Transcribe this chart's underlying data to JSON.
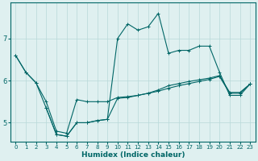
{
  "title": "",
  "xlabel": "Humidex (Indice chaleur)",
  "background_color": "#dff0f0",
  "grid_color": "#b8d8d8",
  "line_color": "#006666",
  "xlim": [
    -0.5,
    23.5
  ],
  "ylim": [
    4.55,
    7.85
  ],
  "yticks": [
    5,
    6,
    7
  ],
  "xticks": [
    0,
    1,
    2,
    3,
    4,
    5,
    6,
    7,
    8,
    9,
    10,
    11,
    12,
    13,
    14,
    15,
    16,
    17,
    18,
    19,
    20,
    21,
    22,
    23
  ],
  "line1_x": [
    0,
    1,
    2,
    3,
    4,
    5,
    6,
    7,
    8,
    9,
    10,
    11,
    12,
    13,
    14,
    15,
    16,
    17,
    18,
    19,
    20,
    21,
    22,
    23
  ],
  "line1_y": [
    6.6,
    6.2,
    5.95,
    5.5,
    4.8,
    4.75,
    5.55,
    5.5,
    5.5,
    5.5,
    5.6,
    5.62,
    5.65,
    5.7,
    5.75,
    5.82,
    5.88,
    5.93,
    5.98,
    6.03,
    6.1,
    5.7,
    5.7,
    5.92
  ],
  "line2_x": [
    0,
    1,
    2,
    3,
    4,
    5,
    6,
    7,
    8,
    9,
    10,
    11,
    12,
    13,
    14,
    15,
    16,
    17,
    18,
    19,
    20,
    21,
    22,
    23
  ],
  "line2_y": [
    6.6,
    6.2,
    5.95,
    5.35,
    4.72,
    4.68,
    5.0,
    5.0,
    5.05,
    5.08,
    7.0,
    7.35,
    7.2,
    7.28,
    7.6,
    6.65,
    6.72,
    6.72,
    6.82,
    6.82,
    6.2,
    5.65,
    5.65,
    5.92
  ],
  "line3_x": [
    3,
    4,
    5,
    6,
    7,
    8,
    9,
    10,
    11,
    12,
    13,
    14,
    15,
    16,
    17,
    18,
    19,
    20,
    21,
    22,
    23
  ],
  "line3_y": [
    5.35,
    4.72,
    4.68,
    5.0,
    5.0,
    5.05,
    5.08,
    5.58,
    5.6,
    5.65,
    5.7,
    5.78,
    5.88,
    5.93,
    5.98,
    6.02,
    6.06,
    6.12,
    5.72,
    5.72,
    5.92
  ]
}
